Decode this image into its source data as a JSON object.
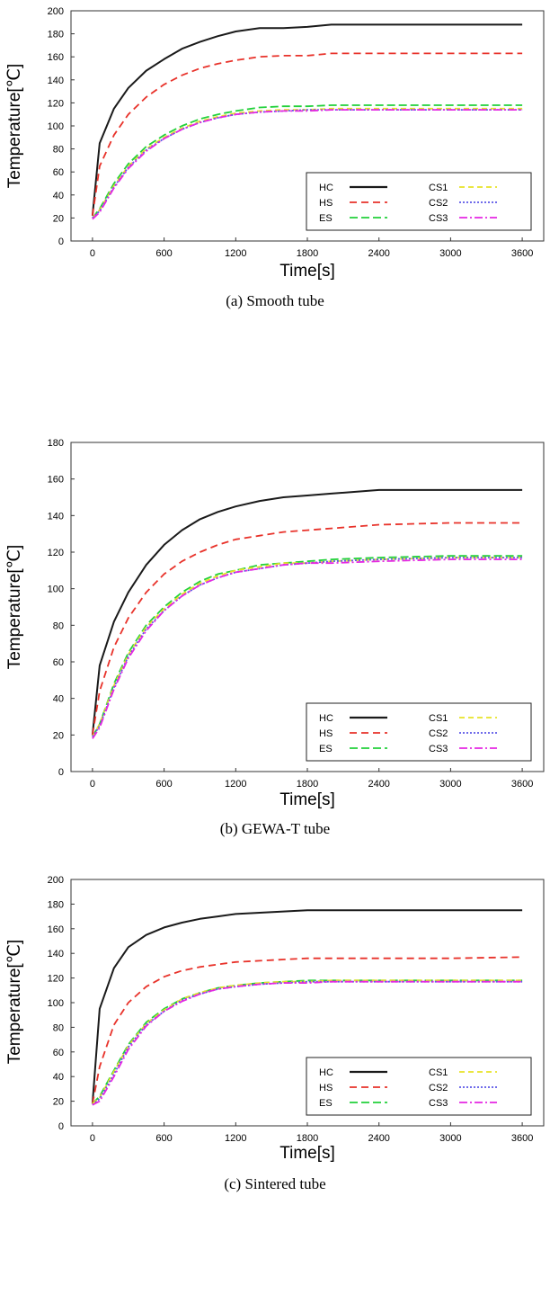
{
  "chart_data": [
    {
      "type": "line",
      "caption": "(a)  Smooth  tube",
      "xlabel": "Time[s]",
      "ylabel": "Temperature[℃]",
      "xlim": [
        -180,
        3780
      ],
      "ylim": [
        0,
        200
      ],
      "xticks": [
        0,
        600,
        1200,
        1800,
        2400,
        3000,
        3600
      ],
      "yticks": [
        0,
        20,
        40,
        60,
        80,
        100,
        120,
        140,
        160,
        180,
        200
      ],
      "x": [
        0,
        60,
        180,
        300,
        450,
        600,
        750,
        900,
        1050,
        1200,
        1400,
        1600,
        1800,
        2000,
        2400,
        3000,
        3600
      ],
      "series": [
        {
          "name": "HC",
          "color": "#1a1a1a",
          "dash": "solid",
          "values": [
            22,
            85,
            115,
            133,
            148,
            158,
            167,
            173,
            178,
            182,
            185,
            185,
            186,
            188,
            188,
            188,
            188
          ]
        },
        {
          "name": "HS",
          "color": "#e8322a",
          "dash": "8,5",
          "values": [
            22,
            65,
            92,
            110,
            125,
            136,
            144,
            150,
            154,
            157,
            160,
            161,
            161,
            163,
            163,
            163,
            163
          ]
        },
        {
          "name": "ES",
          "color": "#22d13a",
          "dash": "9,4",
          "values": [
            20,
            28,
            50,
            67,
            82,
            92,
            100,
            106,
            110,
            113,
            116,
            117,
            117,
            118,
            118,
            118,
            118
          ]
        },
        {
          "name": "CS1",
          "color": "#e8e227",
          "dash": "6,4",
          "values": [
            20,
            27,
            48,
            65,
            80,
            90,
            98,
            104,
            108,
            111,
            113,
            114,
            114,
            115,
            115,
            115,
            115
          ]
        },
        {
          "name": "CS2",
          "color": "#5c57e8",
          "dash": "2,2",
          "values": [
            20,
            26,
            47,
            64,
            79,
            89,
            97,
            103,
            107,
            110,
            112,
            113,
            114,
            114,
            114,
            114,
            114
          ]
        },
        {
          "name": "CS3",
          "color": "#e528e2",
          "dash": "9,3,2,3",
          "values": [
            19,
            25,
            46,
            63,
            78,
            89,
            97,
            103,
            107,
            110,
            112,
            113,
            113,
            114,
            114,
            114,
            114
          ]
        }
      ],
      "legend": {
        "position": "bottom-right",
        "columns": [
          [
            "HC",
            "HS",
            "ES"
          ],
          [
            "CS1",
            "CS2",
            "CS3"
          ]
        ]
      }
    },
    {
      "type": "line",
      "caption": "(b)  GEWA-T  tube",
      "xlabel": "Time[s]",
      "ylabel": "Temperature[℃]",
      "xlim": [
        -180,
        3780
      ],
      "ylim": [
        0,
        180
      ],
      "xticks": [
        0,
        600,
        1200,
        1800,
        2400,
        3000,
        3600
      ],
      "yticks": [
        0,
        20,
        40,
        60,
        80,
        100,
        120,
        140,
        160,
        180
      ],
      "x": [
        0,
        60,
        180,
        300,
        450,
        600,
        750,
        900,
        1050,
        1200,
        1400,
        1600,
        1800,
        2000,
        2400,
        3000,
        3600
      ],
      "series": [
        {
          "name": "HC",
          "color": "#1a1a1a",
          "dash": "solid",
          "values": [
            20,
            58,
            82,
            98,
            113,
            124,
            132,
            138,
            142,
            145,
            148,
            150,
            151,
            152,
            154,
            154,
            154
          ]
        },
        {
          "name": "HS",
          "color": "#e8322a",
          "dash": "8,5",
          "values": [
            20,
            44,
            68,
            84,
            98,
            108,
            115,
            120,
            124,
            127,
            129,
            131,
            132,
            133,
            135,
            136,
            136
          ]
        },
        {
          "name": "ES",
          "color": "#22d13a",
          "dash": "9,4",
          "values": [
            19,
            26,
            48,
            65,
            80,
            90,
            98,
            104,
            108,
            110,
            113,
            114,
            115,
            116,
            117,
            118,
            118
          ]
        },
        {
          "name": "CS1",
          "color": "#e8e227",
          "dash": "6,4",
          "values": [
            19,
            26,
            47,
            64,
            79,
            89,
            97,
            103,
            107,
            110,
            112,
            114,
            114,
            115,
            116,
            117,
            117
          ]
        },
        {
          "name": "CS2",
          "color": "#5c57e8",
          "dash": "2,2",
          "values": [
            19,
            25,
            46,
            63,
            78,
            88,
            96,
            102,
            106,
            109,
            111,
            113,
            114,
            115,
            116,
            117,
            117
          ]
        },
        {
          "name": "CS3",
          "color": "#e528e2",
          "dash": "9,3,2,3",
          "values": [
            18,
            24,
            45,
            62,
            77,
            88,
            96,
            102,
            106,
            109,
            111,
            113,
            114,
            114,
            115,
            116,
            116
          ]
        }
      ],
      "legend": {
        "position": "bottom-right",
        "columns": [
          [
            "HC",
            "HS",
            "ES"
          ],
          [
            "CS1",
            "CS2",
            "CS3"
          ]
        ]
      }
    },
    {
      "type": "line",
      "caption": "(c)  Sintered  tube",
      "xlabel": "Time[s]",
      "ylabel": "Temperature[℃]",
      "xlim": [
        -180,
        3780
      ],
      "ylim": [
        0,
        200
      ],
      "xticks": [
        0,
        600,
        1200,
        1800,
        2400,
        3000,
        3600
      ],
      "yticks": [
        0,
        20,
        40,
        60,
        80,
        100,
        120,
        140,
        160,
        180,
        200
      ],
      "x": [
        0,
        60,
        180,
        300,
        450,
        600,
        750,
        900,
        1050,
        1200,
        1400,
        1600,
        1800,
        2000,
        2400,
        3000,
        3600
      ],
      "series": [
        {
          "name": "HC",
          "color": "#1a1a1a",
          "dash": "solid",
          "values": [
            18,
            95,
            128,
            145,
            155,
            161,
            165,
            168,
            170,
            172,
            173,
            174,
            175,
            175,
            175,
            175,
            175
          ]
        },
        {
          "name": "HS",
          "color": "#e8322a",
          "dash": "8,5",
          "values": [
            18,
            48,
            82,
            100,
            113,
            121,
            126,
            129,
            131,
            133,
            134,
            135,
            136,
            136,
            136,
            136,
            137
          ]
        },
        {
          "name": "ES",
          "color": "#22d13a",
          "dash": "9,4",
          "values": [
            18,
            24,
            45,
            66,
            84,
            95,
            103,
            108,
            112,
            114,
            116,
            117,
            118,
            118,
            118,
            118,
            118
          ]
        },
        {
          "name": "CS1",
          "color": "#e8e227",
          "dash": "6,4",
          "values": [
            18,
            23,
            44,
            65,
            83,
            94,
            103,
            108,
            112,
            114,
            116,
            117,
            117,
            118,
            118,
            118,
            118
          ]
        },
        {
          "name": "CS2",
          "color": "#5c57e8",
          "dash": "2,2",
          "values": [
            17,
            22,
            42,
            64,
            82,
            93,
            102,
            107,
            111,
            113,
            115,
            116,
            117,
            117,
            117,
            117,
            117
          ]
        },
        {
          "name": "CS3",
          "color": "#e528e2",
          "dash": "9,3,2,3",
          "values": [
            17,
            20,
            40,
            62,
            81,
            93,
            101,
            107,
            111,
            113,
            115,
            116,
            116,
            117,
            117,
            117,
            117
          ]
        }
      ],
      "legend": {
        "position": "bottom-right",
        "columns": [
          [
            "HC",
            "HS",
            "ES"
          ],
          [
            "CS1",
            "CS2",
            "CS3"
          ]
        ]
      }
    }
  ]
}
